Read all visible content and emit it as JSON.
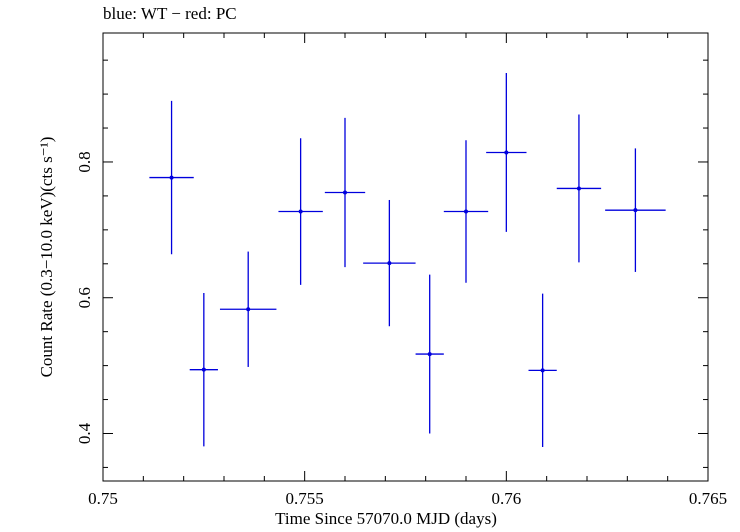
{
  "chart_data": {
    "type": "scatter",
    "title": "blue: WT − red: PC",
    "xlabel": "Time Since 57070.0 MJD (days)",
    "ylabel": "Count Rate (0.3−10.0 keV)(cts s⁻¹)",
    "xlim": [
      0.75,
      0.765
    ],
    "ylim": [
      0.33,
      0.99
    ],
    "x_ticks": [
      0.75,
      0.755,
      0.76,
      0.765
    ],
    "x_tick_labels": [
      "0.75",
      "0.755",
      "0.76",
      "0.765"
    ],
    "y_ticks": [
      0.4,
      0.6,
      0.8
    ],
    "y_tick_labels": [
      "0.4",
      "0.6",
      "0.8"
    ],
    "grid": false,
    "colors": {
      "WT": "#0000dd",
      "axes": "#000000"
    },
    "series": [
      {
        "name": "WT",
        "points": [
          {
            "x": 0.7517,
            "xerr": 0.00055,
            "y": 0.777,
            "yerr": 0.113
          },
          {
            "x": 0.7525,
            "xerr": 0.00035,
            "y": 0.494,
            "yerr": 0.113
          },
          {
            "x": 0.7536,
            "xerr": 0.0007,
            "y": 0.583,
            "yerr": 0.085
          },
          {
            "x": 0.7549,
            "xerr": 0.00055,
            "y": 0.727,
            "yerr": 0.108
          },
          {
            "x": 0.756,
            "xerr": 0.0005,
            "y": 0.755,
            "yerr": 0.11
          },
          {
            "x": 0.7571,
            "xerr": 0.00065,
            "y": 0.651,
            "yerr": 0.093
          },
          {
            "x": 0.7581,
            "xerr": 0.00035,
            "y": 0.517,
            "yerr": 0.117
          },
          {
            "x": 0.759,
            "xerr": 0.00055,
            "y": 0.727,
            "yerr": 0.105
          },
          {
            "x": 0.76,
            "xerr": 0.0005,
            "y": 0.814,
            "yerr": 0.117
          },
          {
            "x": 0.7609,
            "xerr": 0.00035,
            "y": 0.493,
            "yerr": 0.113
          },
          {
            "x": 0.7618,
            "xerr": 0.00055,
            "y": 0.761,
            "yerr": 0.109
          },
          {
            "x": 0.7632,
            "xerr": 0.00075,
            "y": 0.729,
            "yerr": 0.091
          }
        ]
      }
    ]
  }
}
